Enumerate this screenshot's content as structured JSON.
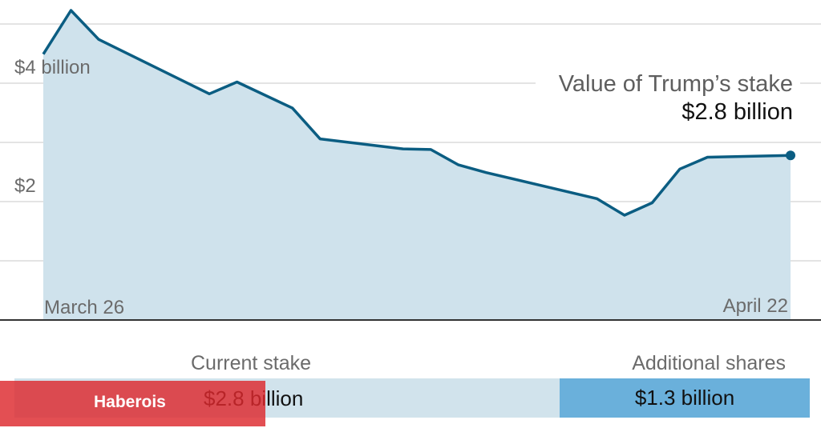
{
  "chart_data": {
    "type": "area",
    "title": "Value of Trump’s stake",
    "current_value_label": "$2.8 billion",
    "y_ticks": [
      {
        "value": 4,
        "label": "$4 billion"
      },
      {
        "value": 2,
        "label": "$2"
      }
    ],
    "grid_values": [
      1,
      2,
      3,
      4,
      5
    ],
    "ylim": [
      0,
      5.3
    ],
    "x_start_label": "March 26",
    "x_end_label": "April 22",
    "values": [
      4.49,
      5.23,
      4.74,
      3.82,
      4.02,
      3.58,
      3.06,
      2.89,
      2.88,
      2.62,
      2.49,
      2.05,
      1.77,
      1.98,
      2.55,
      2.75,
      2.78
    ],
    "x_index": [
      0,
      1,
      2,
      6,
      7,
      9,
      10,
      13,
      14,
      15,
      16,
      20,
      21,
      22,
      23,
      24,
      27
    ],
    "x_span": 27,
    "colors": {
      "line": "#0b5d82",
      "area": "#cfe2ec",
      "grid": "#e4e4e4",
      "baseline": "#333333"
    }
  },
  "bars": {
    "current_label": "Current stake",
    "current_value": "$2.8 billion",
    "additional_label": "Additional shares",
    "additional_value": "$1.3 billion",
    "colors": {
      "current": "#d1e3ec",
      "additional": "#6ab0db"
    }
  },
  "watermark": {
    "text": "Haberois",
    "color": "#dd282d"
  }
}
